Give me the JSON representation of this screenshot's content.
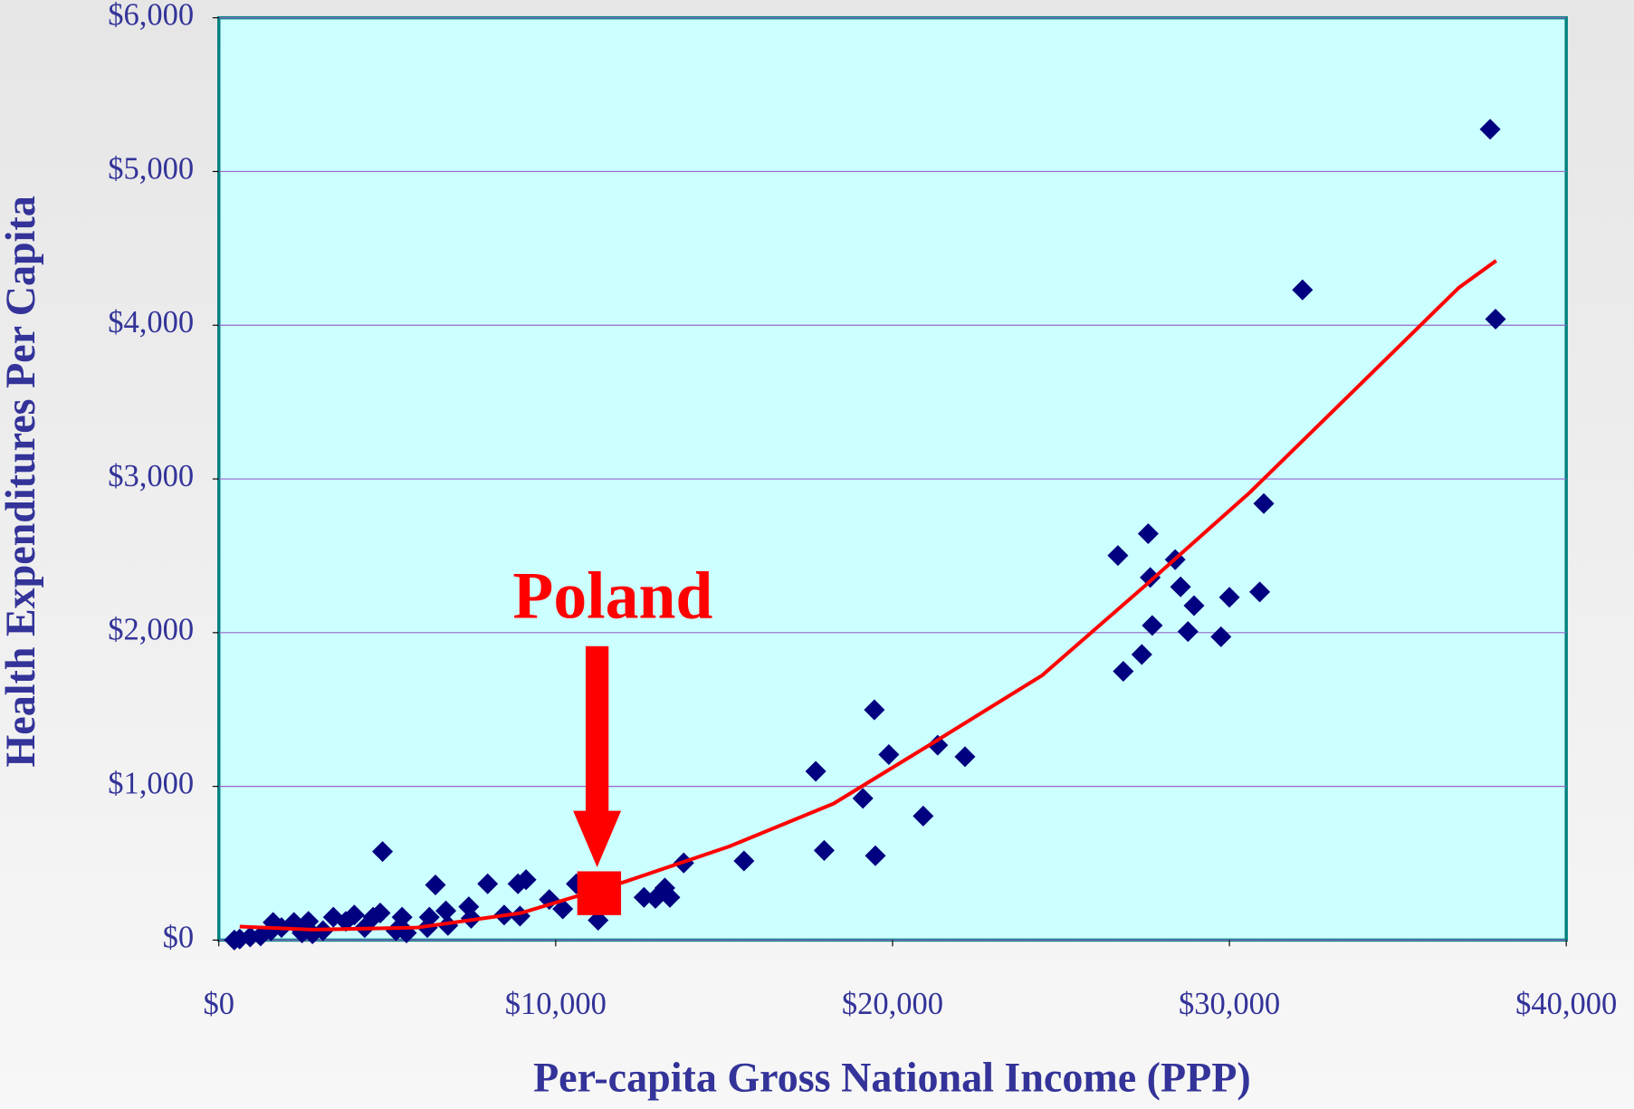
{
  "chart_data": {
    "type": "scatter",
    "xlabel": "Per-capita Gross National Income (PPP)",
    "ylabel": "Health Expenditures Per Capita",
    "xlim": [
      0,
      40000
    ],
    "ylim": [
      0,
      6000
    ],
    "xticks": [
      {
        "value": 0,
        "label": "$0"
      },
      {
        "value": 10000,
        "label": "$10,000"
      },
      {
        "value": 20000,
        "label": "$20,000"
      },
      {
        "value": 30000,
        "label": "$30,000"
      },
      {
        "value": 40000,
        "label": "$40,000"
      }
    ],
    "yticks": [
      {
        "value": 0,
        "label": "$0"
      },
      {
        "value": 1000,
        "label": "$1,000"
      },
      {
        "value": 2000,
        "label": "$2,000"
      },
      {
        "value": 3000,
        "label": "$3,000"
      },
      {
        "value": 4000,
        "label": "$4,000"
      },
      {
        "value": 5000,
        "label": "$5,000"
      },
      {
        "value": 6000,
        "label": "$6,000"
      }
    ],
    "grid": true,
    "series": [
      {
        "color": "#000080",
        "x": [
          37740,
          37900,
          32170,
          31020,
          30900,
          30000,
          29750,
          28950,
          28770,
          28550,
          28390,
          27590,
          27650,
          27710,
          27400,
          26850,
          26690,
          22150,
          21340,
          20910,
          19890,
          19460,
          19490,
          19120,
          17970,
          17720,
          15590,
          13800,
          13390,
          13240,
          12960,
          12620,
          11260,
          10610,
          10210,
          9810,
          9120,
          8880,
          8940,
          8470,
          7980,
          7420,
          7490,
          6740,
          6430,
          6250,
          6190,
          5440,
          5260,
          4860,
          4790,
          4580,
          4330,
          4020,
          3770,
          3400,
          3090,
          2660,
          2230,
          1860,
          1550,
          1240,
          930,
          620,
          460,
          1610,
          2470,
          5570,
          2780,
          6800
        ],
        "values": [
          5275,
          4040,
          4230,
          2840,
          2265,
          2230,
          1973,
          2176,
          2007,
          2298,
          2475,
          2644,
          2359,
          2047,
          1858,
          1749,
          2502,
          1193,
          1268,
          807,
          1207,
          1498,
          549,
          922,
          583,
          1098,
          515,
          502,
          278,
          339,
          271,
          278,
          129,
          366,
          203,
          264,
          393,
          366,
          156,
          163,
          366,
          217,
          142,
          190,
          359,
          149,
          81,
          149,
          61,
          576,
          176,
          149,
          81,
          163,
          122,
          149,
          61,
          122,
          115,
          81,
          61,
          27,
          20,
          7,
          0,
          115,
          47,
          47,
          41,
          95
        ]
      },
      {
        "color": "#ff0000",
        "trend": true,
        "x": [
          620,
          2780,
          5880,
          8970,
          12060,
          15160,
          18250,
          21340,
          24440,
          27530,
          30620,
          33720,
          36810,
          37920
        ],
        "values": [
          88,
          68,
          81,
          176,
          380,
          610,
          888,
          1302,
          1722,
          2312,
          2915,
          3580,
          4244,
          4420
        ]
      }
    ],
    "annotation": {
      "text": "Poland",
      "x": 11290,
      "y": 305,
      "color": "#ff0000"
    }
  }
}
